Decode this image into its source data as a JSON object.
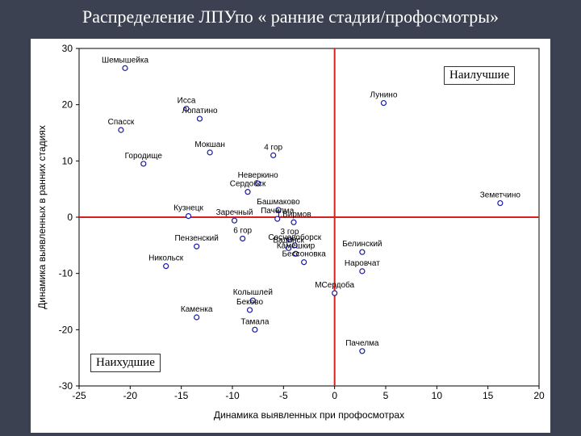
{
  "slide_title": "Распределение ЛПУпо « ранние стадии/профосмотры»",
  "labels": {
    "best": "Наилучшие",
    "worst": "Наихудшие"
  },
  "colors": {
    "background": "#3b4150",
    "point": "#1a1aa0",
    "reference_lines": "#d62020"
  },
  "chart_data": {
    "type": "scatter",
    "title": "Распределение ЛПУпо « ранние стадии/профосмотры»",
    "xlabel": "Динамика выявленных при профосмотрах",
    "ylabel": "Динамика выявленных в ранних стадиях",
    "xlim": [
      -25,
      20
    ],
    "ylim": [
      -30,
      30
    ],
    "xticks": [
      -25,
      -20,
      -15,
      -10,
      -5,
      0,
      5,
      10,
      15,
      20
    ],
    "yticks": [
      -30,
      -20,
      -10,
      0,
      10,
      20,
      30
    ],
    "reference_lines": {
      "x": 0,
      "y": 0
    },
    "grid": false,
    "points": [
      {
        "name": "Шемышейка",
        "x": -20.5,
        "y": 26.5
      },
      {
        "name": "Исса",
        "x": -14.5,
        "y": 19.3
      },
      {
        "name": "Лопатино",
        "x": -13.2,
        "y": 17.5
      },
      {
        "name": "Спасск",
        "x": -20.9,
        "y": 15.5
      },
      {
        "name": "Лунино",
        "x": 4.8,
        "y": 20.3
      },
      {
        "name": "Мокшан",
        "x": -12.2,
        "y": 11.5
      },
      {
        "name": "4 гор",
        "x": -6.0,
        "y": 11.0
      },
      {
        "name": "Городище",
        "x": -18.7,
        "y": 9.5
      },
      {
        "name": "Неверкино",
        "x": -7.5,
        "y": 6.0
      },
      {
        "name": "Сердобск",
        "x": -8.5,
        "y": 4.5
      },
      {
        "name": "Земетчино",
        "x": 16.2,
        "y": 2.5
      },
      {
        "name": "Кузнецк",
        "x": -14.3,
        "y": 0.2
      },
      {
        "name": "Башмаково",
        "x": -5.5,
        "y": 1.3
      },
      {
        "name": "Заречный",
        "x": -9.8,
        "y": -0.6
      },
      {
        "name": "Пачелма",
        "x": -5.6,
        "y": -0.3
      },
      {
        "name": "Т.Вирмов",
        "x": -4.0,
        "y": -0.9
      },
      {
        "name": "6 гор",
        "x": -9.0,
        "y": -3.8
      },
      {
        "name": "3 гор",
        "x": -4.4,
        "y": -4.0
      },
      {
        "name": "Сосновоборск",
        "x": -3.9,
        "y": -5.0
      },
      {
        "name": "Вадинск",
        "x": -4.5,
        "y": -5.5
      },
      {
        "name": "Камешкир",
        "x": -3.8,
        "y": -6.5
      },
      {
        "name": "Бессоновка",
        "x": -3.0,
        "y": -8.0
      },
      {
        "name": "Белинский",
        "x": 2.7,
        "y": -6.2
      },
      {
        "name": "Пензенский",
        "x": -13.5,
        "y": -5.2
      },
      {
        "name": "Никольск",
        "x": -16.5,
        "y": -8.7
      },
      {
        "name": "Наровчат",
        "x": 2.7,
        "y": -9.6
      },
      {
        "name": "МСердоба",
        "x": 0.0,
        "y": -13.5
      },
      {
        "name": "Колышлей",
        "x": -8.0,
        "y": -14.8
      },
      {
        "name": "Бековo",
        "x": -8.3,
        "y": -16.5
      },
      {
        "name": "Каменка",
        "x": -13.5,
        "y": -17.8
      },
      {
        "name": "Тамала",
        "x": -7.8,
        "y": -20.0
      },
      {
        "name": "Пачелма",
        "x": 2.7,
        "y": -23.8
      }
    ]
  }
}
